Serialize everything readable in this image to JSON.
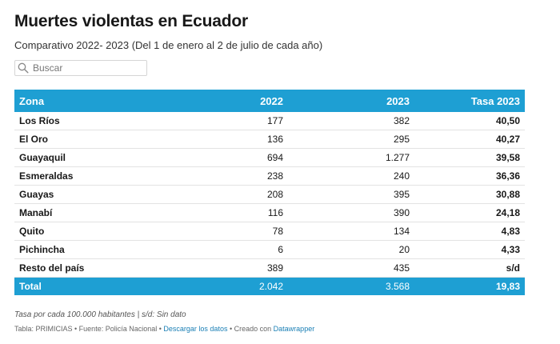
{
  "title": "Muertes violentas en Ecuador",
  "subtitle": "Comparativo 2022- 2023 (Del 1 de enero al 2 de julio de cada año)",
  "search": {
    "placeholder": "Buscar"
  },
  "colors": {
    "header_bg": "#1e9fd3",
    "link": "#1a7fb5"
  },
  "table": {
    "columns": [
      "Zona",
      "2022",
      "2023",
      "Tasa 2023"
    ],
    "rows": [
      [
        "Los Ríos",
        "177",
        "382",
        "40,50"
      ],
      [
        "El Oro",
        "136",
        "295",
        "40,27"
      ],
      [
        "Guayaquil",
        "694",
        "1.277",
        "39,58"
      ],
      [
        "Esmeraldas",
        "238",
        "240",
        "36,36"
      ],
      [
        "Guayas",
        "208",
        "395",
        "30,88"
      ],
      [
        "Manabí",
        "116",
        "390",
        "24,18"
      ],
      [
        "Quito",
        "78",
        "134",
        "4,83"
      ],
      [
        "Pichincha",
        "6",
        "20",
        "4,33"
      ],
      [
        "Resto del país",
        "389",
        "435",
        "s/d"
      ]
    ],
    "total": [
      "Total",
      "2.042",
      "3.568",
      "19,83"
    ]
  },
  "footer": {
    "note": "Tasa por cada 100.000 habitantes | s/d: Sin dato",
    "source_prefix": "Tabla: PRIMICIAS • Fuente: Policía Nacional •",
    "download_link": "Descargar los datos",
    "created_with": "• Creado con",
    "tool_link": "Datawrapper"
  }
}
